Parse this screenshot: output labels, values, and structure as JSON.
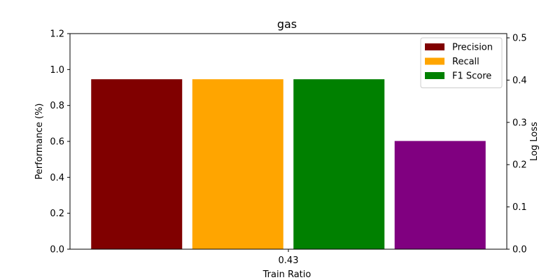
{
  "chart_data": {
    "type": "bar",
    "title": "gas",
    "xlabel": "Train Ratio",
    "ylabel": "Performance (%)",
    "y2label": "Log Loss",
    "categories": [
      "0.43"
    ],
    "ylim": [
      0,
      1.2
    ],
    "yticks": [
      "0.0",
      "0.2",
      "0.4",
      "0.6",
      "0.8",
      "1.0",
      "1.2"
    ],
    "y2lim": [
      0,
      0.51
    ],
    "y2ticks": [
      "0.0",
      "0.1",
      "0.2",
      "0.3",
      "0.4",
      "0.5"
    ],
    "legend_position": "top-right",
    "grid": false,
    "series": [
      {
        "name": "Precision",
        "axis": "left",
        "color": "#800000",
        "values": [
          0.946
        ]
      },
      {
        "name": "Recall",
        "axis": "left",
        "color": "#ffa500",
        "values": [
          0.946
        ]
      },
      {
        "name": "F1 Score",
        "axis": "left",
        "color": "#008000",
        "values": [
          0.946
        ]
      },
      {
        "name": "",
        "axis": "right",
        "color": "#800080",
        "values": [
          0.256
        ]
      }
    ],
    "y2label_color": "#800080"
  }
}
